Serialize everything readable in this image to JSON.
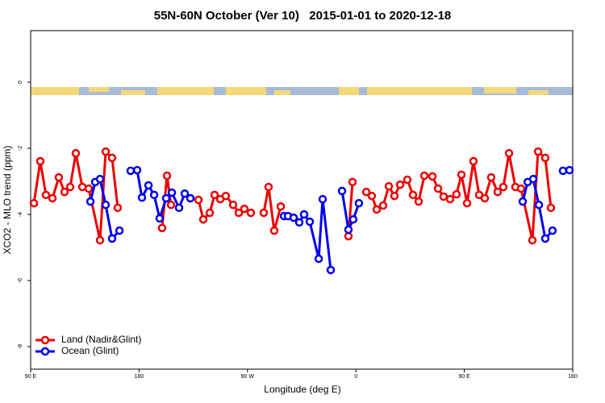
{
  "chart_data": {
    "type": "line",
    "title": "55N-60N October (Ver 10)   2015-01-01 to 2020-12-18",
    "x_label": "Longitude (deg E)",
    "y_label": "XCO2 - MLO trend (ppm)",
    "xlim": [
      90,
      540
    ],
    "xticks": [
      {
        "value": 90,
        "label": "90 E"
      },
      {
        "value": 180,
        "label": "180"
      },
      {
        "value": 270,
        "label": "90 W"
      },
      {
        "value": 360,
        "label": "0"
      },
      {
        "value": 450,
        "label": "90 E"
      },
      {
        "value": 540,
        "label": "180"
      }
    ],
    "ylim": [
      -8.68,
      1.56
    ],
    "yticks": [
      0,
      -2,
      -4,
      -6,
      -8
    ],
    "legend": "bottom-left",
    "series": [
      {
        "name": "Land (Nadir&Glint)",
        "color": "#ee0000",
        "x": [
          92.7,
          98.0,
          102.7,
          108.1,
          113.4,
          118.1,
          122.8,
          127.5,
          132.9,
          138.2,
          147.6,
          152.3,
          157.6,
          162.3,
          null,
          199.1,
          203.2,
          206.5,
          null,
          229.3,
          233.3,
          238.7,
          242.7,
          247.4,
          252.0,
          258.1,
          262.8,
          267.4,
          272.8,
          null,
          283.5,
          287.5,
          292.2,
          297.6,
          null,
          353.8,
          357.2,
          null,
          368.6,
          373.2,
          377.3,
          382.6,
          387.3,
          392.0,
          396.7,
          402.7,
          407.4,
          412.1,
          416.8,
          423.5,
          428.2,
          432.8,
          438.2,
          443.5,
          447.6,
          452.3,
          457.6,
          462.3,
          467.0,
          472.3,
          477.7,
          482.4,
          487.1,
          492.4,
          497.1,
          506.5,
          511.2,
          517.2,
          521.9
        ],
        "values": [
          -3.66,
          -2.39,
          -3.41,
          -3.51,
          -2.88,
          -3.32,
          -3.17,
          -2.15,
          -3.17,
          -3.22,
          -4.78,
          -2.1,
          -2.29,
          -3.8,
          null,
          -4.41,
          -2.83,
          -3.71,
          null,
          -3.56,
          -4.15,
          -3.95,
          -3.41,
          -3.54,
          -3.44,
          -3.71,
          -3.95,
          -3.83,
          -3.95,
          null,
          -3.95,
          -3.17,
          -4.49,
          -3.76,
          null,
          -4.66,
          -3.02,
          null,
          -3.32,
          -3.44,
          -3.85,
          -3.73,
          -3.15,
          -3.44,
          -3.1,
          -2.95,
          -3.41,
          -3.61,
          -2.83,
          -2.85,
          -3.22,
          -3.46,
          -3.54,
          -3.39,
          -2.8,
          -3.66,
          -2.39,
          -3.41,
          -3.51,
          -2.88,
          -3.32,
          -3.17,
          -2.15,
          -3.17,
          -3.22,
          -4.78,
          -2.1,
          -2.29,
          -3.8
        ]
      },
      {
        "name": "Ocean (Glint)",
        "color": "#0000ee",
        "x": [
          139.6,
          143.6,
          147.6,
          152.3,
          157.6,
          163.7,
          null,
          173.0,
          178.4,
          182.4,
          187.8,
          192.5,
          197.1,
          202.5,
          207.2,
          213.2,
          217.9,
          222.6,
          null,
          300.3,
          303.6,
          308.3,
          313.0,
          317.0,
          321.7,
          329.1,
          332.4,
          339.1,
          null,
          348.5,
          353.8,
          357.8,
          362.5,
          null,
          498.5,
          502.6,
          507.2,
          511.9,
          517.2,
          523.2,
          null,
          531.9,
          537.3
        ],
        "values": [
          -3.61,
          -3.02,
          -2.93,
          -3.71,
          -4.73,
          -4.49,
          null,
          -2.68,
          -2.66,
          -3.49,
          -3.12,
          -3.41,
          -4.12,
          -3.51,
          -3.34,
          -3.8,
          -3.37,
          -3.51,
          null,
          -4.05,
          -4.05,
          -4.1,
          -4.24,
          -4.0,
          -4.22,
          -5.34,
          -3.54,
          -5.68,
          null,
          -3.29,
          -4.46,
          -4.15,
          -3.66,
          null,
          -3.61,
          -3.02,
          -2.93,
          -3.71,
          -4.73,
          -4.49,
          null,
          -2.68,
          -2.66
        ]
      }
    ]
  }
}
